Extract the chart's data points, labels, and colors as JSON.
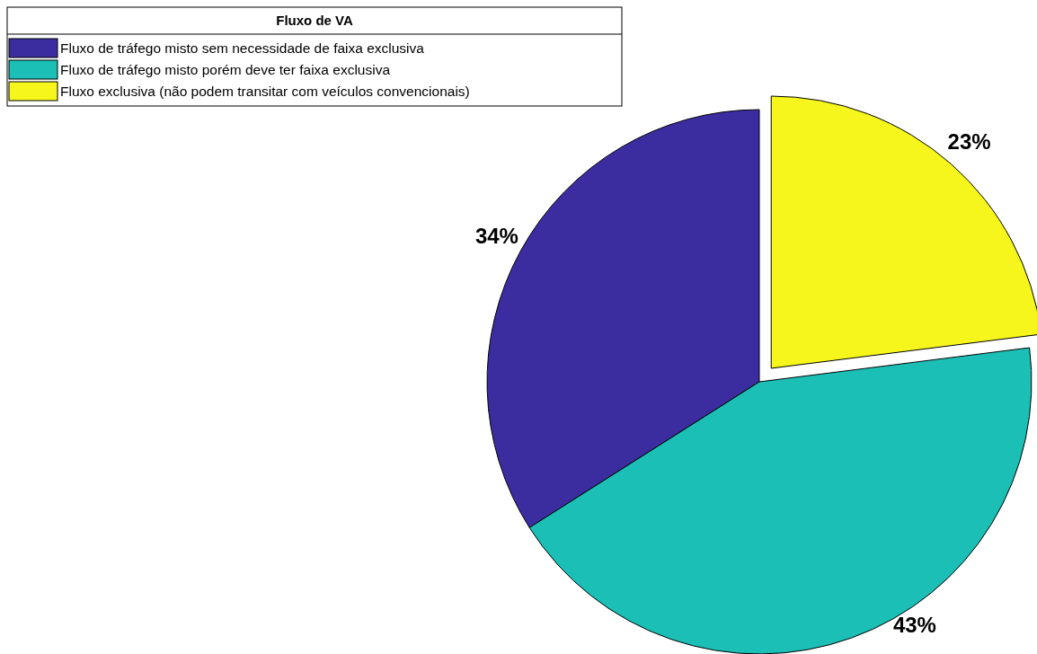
{
  "chart_data": {
    "type": "pie",
    "legend_title": "Fluxo de VA",
    "legend": "top left",
    "categories": [
      "Fluxo de tráfego misto sem necessidade de faixa exclusiva",
      "Fluxo de tráfego misto porém deve ter faixa exclusiva",
      "Fluxo exclusiva (não podem transitar com veículos convencionais)"
    ],
    "values": [
      34,
      43,
      23
    ],
    "value_labels": [
      "34%",
      "43%",
      "23%"
    ],
    "colors": [
      "#3b2d9f",
      "#1bbfb6",
      "#f6f61c"
    ]
  }
}
